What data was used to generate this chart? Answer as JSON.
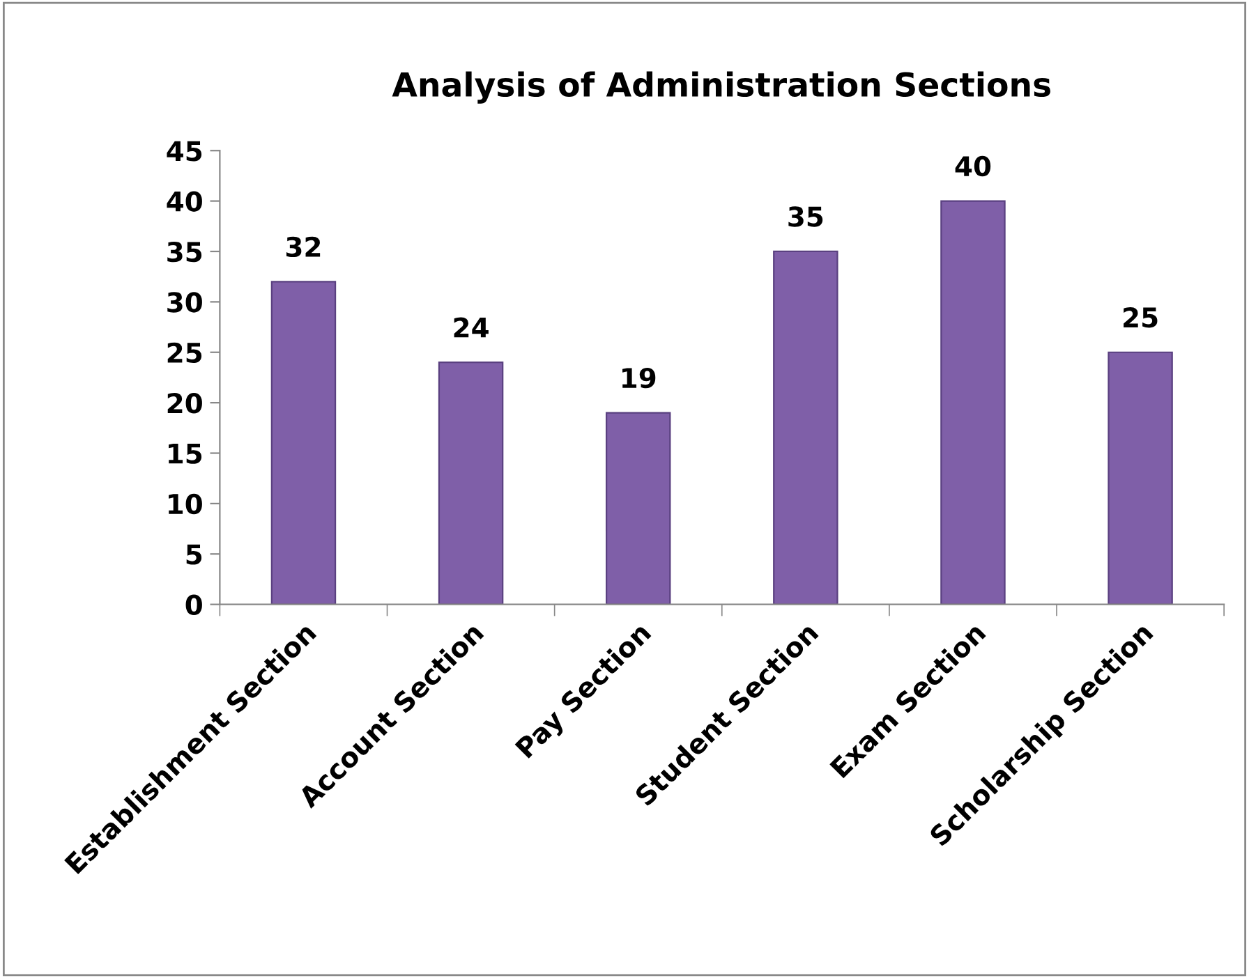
{
  "chart_data": {
    "type": "bar",
    "title": "Analysis of Administration Sections",
    "categories": [
      "Establishment Section",
      "Account Section",
      "Pay Section",
      "Student Section",
      "Exam Section",
      "Scholarship Section"
    ],
    "values": [
      32,
      24,
      19,
      35,
      40,
      25
    ],
    "color": "#7f5fa8",
    "ylim": [
      0,
      45
    ],
    "yticks": [
      0,
      5,
      10,
      15,
      20,
      25,
      30,
      35,
      40,
      45
    ],
    "data_labels": true,
    "grid": false
  }
}
